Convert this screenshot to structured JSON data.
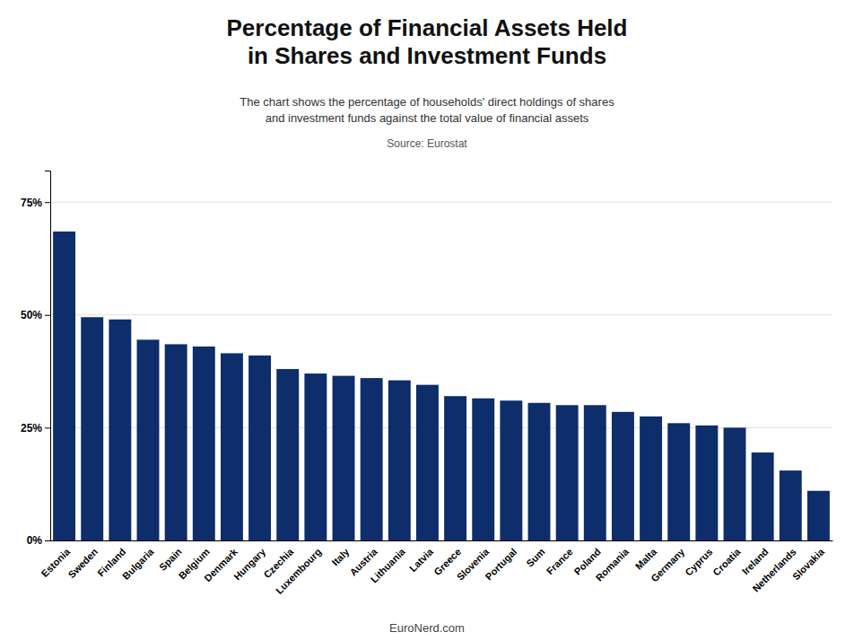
{
  "chart_data": {
    "type": "bar",
    "title": "Percentage of Financial Assets Held\nin Shares and Investment Funds",
    "subtitle": "The chart shows the percentage of households' direct holdings of shares\nand investment funds against the total value of financial assets",
    "source": "Source: Eurostat",
    "footer": "EuroNerd.com",
    "categories": [
      "Estonia",
      "Sweden",
      "Finland",
      "Bulgaria",
      "Spain",
      "Belgium",
      "Denmark",
      "Hungary",
      "Czechia",
      "Luxembourg",
      "Italy",
      "Austria",
      "Lithuania",
      "Latvia",
      "Greece",
      "Slovenia",
      "Portugal",
      "Sum",
      "France",
      "Poland",
      "Romania",
      "Malta",
      "Germany",
      "Cyprus",
      "Croatia",
      "Ireland",
      "Netherlands",
      "Slovakia"
    ],
    "values": [
      68.5,
      49.5,
      49.0,
      44.5,
      43.5,
      43.0,
      41.5,
      41.0,
      38.0,
      37.0,
      36.5,
      36.0,
      35.5,
      34.5,
      32.0,
      31.5,
      31.0,
      30.5,
      30.0,
      30.0,
      28.5,
      27.5,
      26.0,
      25.5,
      25.0,
      19.5,
      15.5,
      11.0
    ],
    "color": "#0d2d6b",
    "ylim": [
      0,
      82
    ],
    "yticks": [
      {
        "value": 0,
        "label": "0%"
      },
      {
        "value": 25,
        "label": "25%"
      },
      {
        "value": 50,
        "label": "50%"
      },
      {
        "value": 75,
        "label": "75%"
      }
    ],
    "grid": true
  }
}
